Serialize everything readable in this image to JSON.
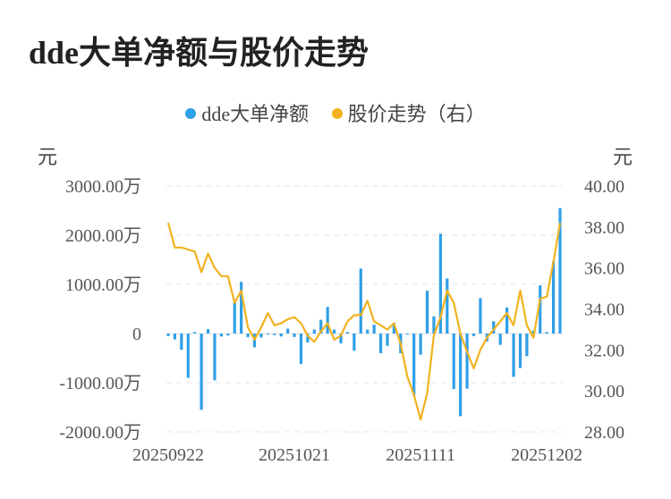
{
  "title": "dde大单净额与股价走势",
  "legend": [
    {
      "label": "dde大单净额",
      "color": "#2f9fe8"
    },
    {
      "label": "股价走势（右）",
      "color": "#f2b21f"
    }
  ],
  "units": {
    "left": "元",
    "right": "元"
  },
  "chart_data": {
    "type": "bar+line",
    "title": "dde大单净额与股价走势",
    "x_tick_labels": [
      "20250922",
      "20251021",
      "20251111",
      "20251202"
    ],
    "x_tick_indices": [
      0,
      19,
      38,
      57
    ],
    "y_left": {
      "ticks": [
        3000,
        2000,
        1000,
        0,
        -1000,
        -2000
      ],
      "tick_labels": [
        "3000.00万",
        "2000.00万",
        "1000.00万",
        "0",
        "-1000.00万",
        "-2000.00万"
      ],
      "ylim": [
        -2000,
        3000
      ],
      "unit": "元"
    },
    "y_right": {
      "ticks": [
        40,
        38,
        36,
        34,
        32,
        30,
        28
      ],
      "tick_labels": [
        "40.00",
        "38.00",
        "36.00",
        "34.00",
        "32.00",
        "30.00",
        "28.00"
      ],
      "ylim": [
        28,
        40
      ],
      "unit": "元"
    },
    "grid": true,
    "legend_position": "top",
    "series": [
      {
        "name": "dde大单净额",
        "type": "bar",
        "axis": "left",
        "color": "#2f9fe8",
        "values": [
          -50,
          -120,
          -330,
          -900,
          30,
          -1550,
          90,
          -950,
          -60,
          -40,
          630,
          1050,
          -70,
          -280,
          -80,
          -10,
          -30,
          -60,
          100,
          -70,
          -620,
          -180,
          80,
          280,
          540,
          80,
          -200,
          30,
          -350,
          1320,
          80,
          180,
          -400,
          -250,
          220,
          -400,
          -20,
          -1250,
          -430,
          870,
          350,
          2030,
          1120,
          -1130,
          -1680,
          -1120,
          -50,
          720,
          -160,
          250,
          -230,
          530,
          -880,
          -700,
          -460,
          60,
          980,
          30,
          1470,
          2550
        ]
      },
      {
        "name": "股价走势（右）",
        "type": "line",
        "axis": "right",
        "color": "#f2b21f",
        "values": [
          38.2,
          37.0,
          37.0,
          36.9,
          36.8,
          35.8,
          36.7,
          36.0,
          35.6,
          35.6,
          34.3,
          34.9,
          33.1,
          32.5,
          33.1,
          33.8,
          33.2,
          33.3,
          33.5,
          33.6,
          33.3,
          32.7,
          32.4,
          32.9,
          33.3,
          32.5,
          32.7,
          33.4,
          33.7,
          33.7,
          34.4,
          33.4,
          33.2,
          33.0,
          33.3,
          32.3,
          30.7,
          29.8,
          28.6,
          29.9,
          32.7,
          33.6,
          34.9,
          34.3,
          32.8,
          31.9,
          31.1,
          32.0,
          32.6,
          33.0,
          33.4,
          33.8,
          33.2,
          34.9,
          33.2,
          32.6,
          34.5,
          34.6,
          36.3,
          38.2
        ]
      }
    ]
  }
}
